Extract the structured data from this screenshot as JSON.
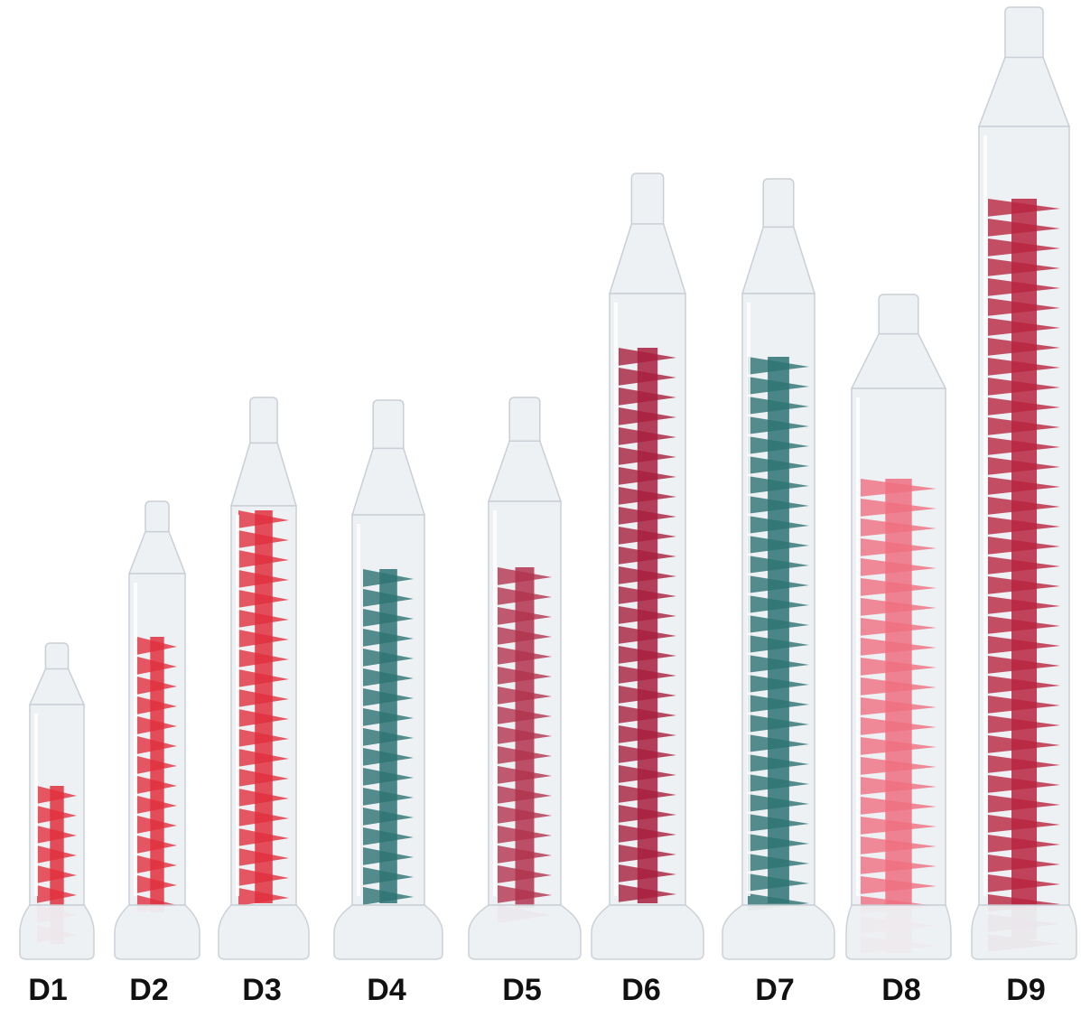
{
  "items": [
    {
      "label": "D1",
      "element_color": "#e0303d"
    },
    {
      "label": "D2",
      "element_color": "#e0303d"
    },
    {
      "label": "D3",
      "element_color": "#e0303d"
    },
    {
      "label": "D4",
      "element_color": "#2d7373"
    },
    {
      "label": "D5",
      "element_color": "#b2334e"
    },
    {
      "label": "D6",
      "element_color": "#a81f3d"
    },
    {
      "label": "D7",
      "element_color": "#2d7373"
    },
    {
      "label": "D8",
      "element_color": "#ef6f80"
    },
    {
      "label": "D9",
      "element_color": "#b8243f"
    }
  ],
  "colors": {
    "background": "#ffffff",
    "tube_plastic": "#eef1f4",
    "label_text": "#111111"
  }
}
